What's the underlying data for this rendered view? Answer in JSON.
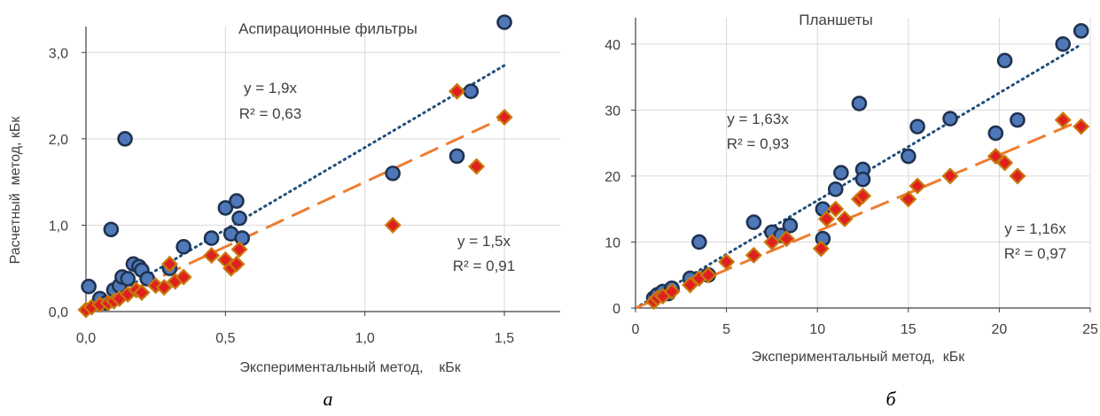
{
  "colors": {
    "blue_fill": "#4f78b8",
    "blue_edge": "#1f3350",
    "trend_blue": "#1f4e79",
    "red_fill": "#e02020",
    "red_edge": "#c8780a",
    "trend_orange": "#ed7d31",
    "grid": "#d9d9d9",
    "axis": "#404040"
  },
  "chart_data": [
    {
      "type": "scatter",
      "panel_label": "а",
      "title": "Аспирационные фильтры",
      "xlabel": "Экспериментальный метод,    кБк",
      "ylabel": "Расчетный  метод, кБк",
      "xlim": [
        0,
        1.7
      ],
      "ylim": [
        0,
        3.3
      ],
      "xticks": [
        0,
        0.5,
        1.0,
        1.5
      ],
      "xtick_labels": [
        "0,0",
        "0,5",
        "1,0",
        "1,5"
      ],
      "yticks": [
        0,
        1,
        2,
        3
      ],
      "ytick_labels": [
        "0,0",
        "1,0",
        "2,0",
        "3,0"
      ],
      "grid": true,
      "series": [
        {
          "marker": "circle",
          "points": [
            [
              0.01,
              0.29
            ],
            [
              0.05,
              0.15
            ],
            [
              0.07,
              0.1
            ],
            [
              0.09,
              0.95
            ],
            [
              0.1,
              0.25
            ],
            [
              0.12,
              0.3
            ],
            [
              0.13,
              0.4
            ],
            [
              0.14,
              2.0
            ],
            [
              0.15,
              0.38
            ],
            [
              0.17,
              0.55
            ],
            [
              0.19,
              0.52
            ],
            [
              0.2,
              0.48
            ],
            [
              0.22,
              0.38
            ],
            [
              0.3,
              0.5
            ],
            [
              0.35,
              0.75
            ],
            [
              0.45,
              0.85
            ],
            [
              0.5,
              1.2
            ],
            [
              0.52,
              0.9
            ],
            [
              0.54,
              1.28
            ],
            [
              0.55,
              1.08
            ],
            [
              0.56,
              0.85
            ],
            [
              1.1,
              1.6
            ],
            [
              1.33,
              1.8
            ],
            [
              1.38,
              2.55
            ],
            [
              1.5,
              3.35
            ]
          ],
          "trendline": {
            "slope": 1.9,
            "x_range": [
              0,
              1.5
            ]
          },
          "equation": "y = 1,9x",
          "r2": "R² = 0,63"
        },
        {
          "marker": "diamond",
          "points": [
            [
              0.0,
              0.02
            ],
            [
              0.02,
              0.05
            ],
            [
              0.05,
              0.08
            ],
            [
              0.08,
              0.1
            ],
            [
              0.1,
              0.12
            ],
            [
              0.12,
              0.15
            ],
            [
              0.15,
              0.2
            ],
            [
              0.18,
              0.25
            ],
            [
              0.2,
              0.22
            ],
            [
              0.25,
              0.3
            ],
            [
              0.28,
              0.28
            ],
            [
              0.3,
              0.55
            ],
            [
              0.32,
              0.35
            ],
            [
              0.35,
              0.4
            ],
            [
              0.45,
              0.65
            ],
            [
              0.5,
              0.6
            ],
            [
              0.52,
              0.5
            ],
            [
              0.54,
              0.55
            ],
            [
              0.55,
              0.72
            ],
            [
              1.1,
              1.0
            ],
            [
              1.33,
              2.55
            ],
            [
              1.4,
              1.68
            ],
            [
              1.5,
              2.25
            ]
          ],
          "trendline": {
            "slope": 1.5,
            "x_range": [
              0,
              1.5
            ]
          },
          "equation": "y = 1,5x",
          "r2": "R² = 0,91"
        }
      ]
    },
    {
      "type": "scatter",
      "panel_label": "б",
      "title": "Планшеты",
      "xlabel": "Экспериментальный метод,  кБк",
      "ylabel": "",
      "xlim": [
        0,
        25
      ],
      "ylim": [
        0,
        44
      ],
      "xticks": [
        0,
        5,
        10,
        15,
        20,
        25
      ],
      "xtick_labels": [
        "0",
        "5",
        "10",
        "15",
        "20",
        "25"
      ],
      "yticks": [
        0,
        10,
        20,
        30,
        40
      ],
      "ytick_labels": [
        "0",
        "10",
        "20",
        "30",
        "40"
      ],
      "grid": true,
      "series": [
        {
          "marker": "circle",
          "points": [
            [
              1.0,
              1.5
            ],
            [
              1.2,
              2.0
            ],
            [
              1.5,
              2.5
            ],
            [
              1.8,
              2.2
            ],
            [
              2.0,
              3.0
            ],
            [
              3.0,
              4.5
            ],
            [
              3.5,
              10.0
            ],
            [
              4.0,
              5.0
            ],
            [
              6.5,
              13.0
            ],
            [
              7.5,
              11.5
            ],
            [
              8.0,
              11.0
            ],
            [
              8.5,
              12.5
            ],
            [
              10.3,
              15.0
            ],
            [
              10.3,
              10.5
            ],
            [
              11.0,
              18.0
            ],
            [
              11.3,
              20.5
            ],
            [
              12.3,
              31.0
            ],
            [
              12.5,
              21.0
            ],
            [
              12.5,
              19.5
            ],
            [
              15.0,
              23.0
            ],
            [
              15.5,
              27.5
            ],
            [
              17.3,
              28.7
            ],
            [
              19.8,
              26.5
            ],
            [
              20.3,
              37.5
            ],
            [
              21.0,
              28.5
            ],
            [
              23.5,
              40.0
            ],
            [
              24.5,
              42.0
            ]
          ],
          "trendline": {
            "slope": 1.63,
            "x_range": [
              0,
              24.5
            ]
          },
          "equation": "y = 1,63x",
          "r2": "R² = 0,93"
        },
        {
          "marker": "diamond",
          "points": [
            [
              1.0,
              1.0
            ],
            [
              1.2,
              1.5
            ],
            [
              1.5,
              1.8
            ],
            [
              2.0,
              2.5
            ],
            [
              3.0,
              3.5
            ],
            [
              3.5,
              4.5
            ],
            [
              4.0,
              5.0
            ],
            [
              5.0,
              7.0
            ],
            [
              6.5,
              8.0
            ],
            [
              7.5,
              10.0
            ],
            [
              8.3,
              10.5
            ],
            [
              10.2,
              9.0
            ],
            [
              10.5,
              13.5
            ],
            [
              11.0,
              15.0
            ],
            [
              11.5,
              13.5
            ],
            [
              12.3,
              16.5
            ],
            [
              12.5,
              17.0
            ],
            [
              15.0,
              16.5
            ],
            [
              15.5,
              18.5
            ],
            [
              17.3,
              20.0
            ],
            [
              19.8,
              23.0
            ],
            [
              20.3,
              22.0
            ],
            [
              21.0,
              20.0
            ],
            [
              23.5,
              28.5
            ],
            [
              24.5,
              27.5
            ]
          ],
          "trendline": {
            "slope": 1.16,
            "x_range": [
              0,
              24.5
            ]
          },
          "equation": "y = 1,16x",
          "r2": "R² = 0,97"
        }
      ]
    }
  ]
}
